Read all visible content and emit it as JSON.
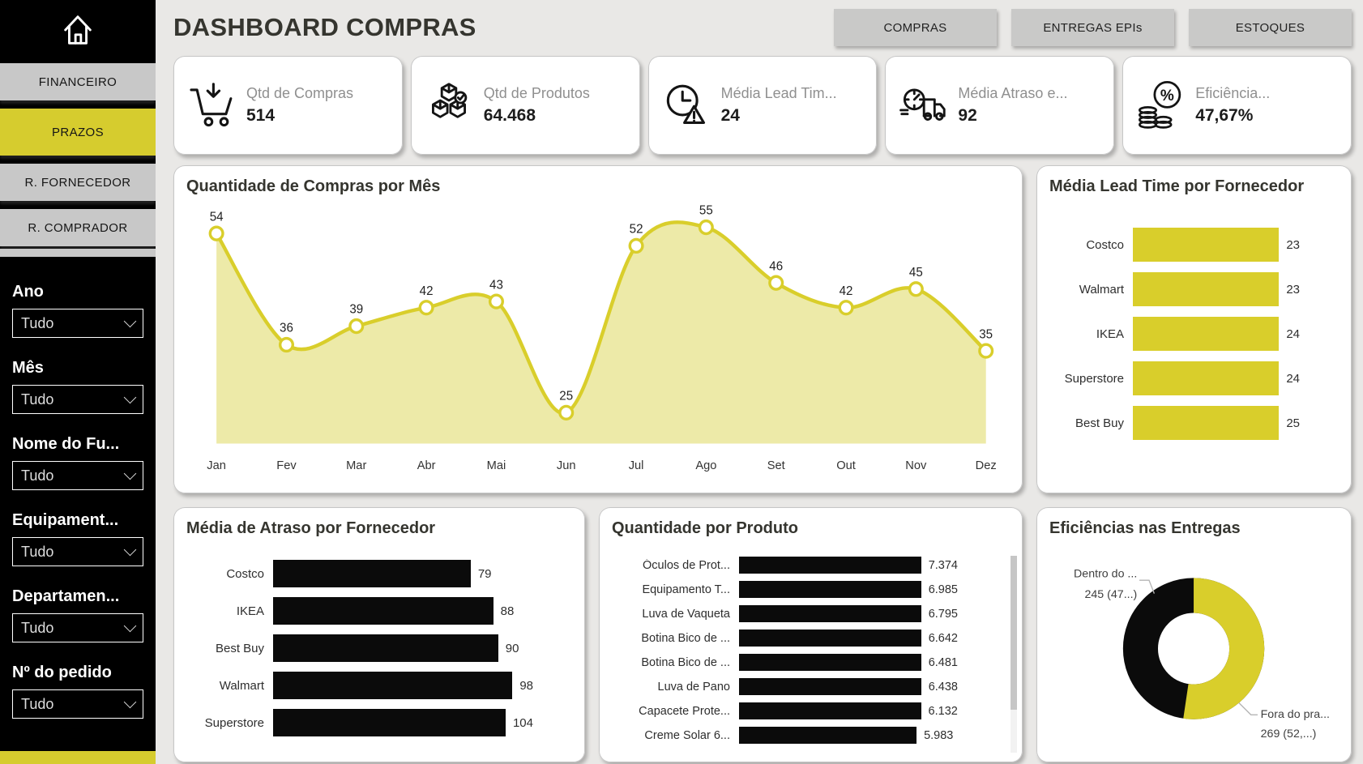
{
  "header": {
    "title": "DASHBOARD COMPRAS",
    "nav_buttons": [
      "COMPRAS",
      "ENTREGAS EPIs",
      "ESTOQUES"
    ]
  },
  "sidebar": {
    "home_icon": "home-icon",
    "nav": [
      {
        "label": "FINANCEIRO",
        "active": false
      },
      {
        "label": "PRAZOS",
        "active": true
      },
      {
        "label": "R. FORNECEDOR",
        "active": false
      },
      {
        "label": "R. COMPRADOR",
        "active": false
      }
    ],
    "filters": [
      {
        "label": "Ano",
        "value": "Tudo"
      },
      {
        "label": "Mês",
        "value": "Tudo"
      },
      {
        "label": "Nome do Fu...",
        "value": "Tudo"
      },
      {
        "label": "Equipament...",
        "value": "Tudo"
      },
      {
        "label": "Departamen...",
        "value": "Tudo"
      },
      {
        "label": "Nº do pedido",
        "value": "Tudo"
      }
    ]
  },
  "kpis": [
    {
      "icon": "cart-download-icon",
      "label": "Qtd de Compras",
      "value": "514"
    },
    {
      "icon": "cubes-check-icon",
      "label": "Qtd de Produtos",
      "value": "64.468"
    },
    {
      "icon": "clock-alert-icon",
      "label": "Média Lead Tim...",
      "value": "24"
    },
    {
      "icon": "truck-gauge-icon",
      "label": "Média Atraso e...",
      "value": "92"
    },
    {
      "icon": "coins-percent-icon",
      "label": "Eficiência...",
      "value": "47,67%"
    }
  ],
  "colors": {
    "accent_yellow": "#d9ce2b",
    "area_fill": "#edeaa8",
    "bar_black": "#0b0b0b",
    "sidebar_active": "#d6cc2e",
    "background": "#e9e8e6"
  },
  "chart_data": [
    {
      "id": "compras_mes",
      "type": "area",
      "title": "Quantidade de Compras por Mês",
      "categories": [
        "Jan",
        "Fev",
        "Mar",
        "Abr",
        "Mai",
        "Jun",
        "Jul",
        "Ago",
        "Set",
        "Out",
        "Nov",
        "Dez"
      ],
      "values": [
        54,
        36,
        39,
        42,
        43,
        25,
        52,
        55,
        46,
        42,
        45,
        35
      ],
      "ylim": [
        20,
        57
      ],
      "line_color": "#d9ce2b",
      "fill_color": "#edeaa8",
      "marker_fill": "#ffffff",
      "data_labels": true,
      "grid": false
    },
    {
      "id": "leadtime_fornecedor",
      "type": "bar",
      "title": "Média Lead Time por Fornecedor",
      "orientation": "horizontal",
      "categories": [
        "Costco",
        "Walmart",
        "IKEA",
        "Superstore",
        "Best Buy"
      ],
      "values": [
        23,
        23,
        24,
        24,
        25
      ],
      "value_labels": [
        "23",
        "23",
        "24",
        "24",
        "25"
      ],
      "bar_color": "#d9ce2b",
      "xlim": [
        0,
        25
      ]
    },
    {
      "id": "atraso_fornecedor",
      "type": "bar",
      "title": "Média de Atraso por Fornecedor",
      "orientation": "horizontal",
      "categories": [
        "Costco",
        "IKEA",
        "Best Buy",
        "Walmart",
        "Superstore"
      ],
      "values": [
        79,
        88,
        90,
        98,
        104
      ],
      "value_labels": [
        "79",
        "88",
        "90",
        "98",
        "104"
      ],
      "bar_color": "#0b0b0b",
      "xlim": [
        0,
        104
      ]
    },
    {
      "id": "qtd_produto",
      "type": "bar",
      "title": "Quantidade por Produto",
      "orientation": "horizontal",
      "categories": [
        "Óculos de Prot...",
        "Equipamento T...",
        "Luva de Vaqueta",
        "Botina Bico de ...",
        "Botina Bico de ...",
        "Luva de Pano",
        "Capacete Prote...",
        "Creme Solar 6..."
      ],
      "values": [
        7374,
        6985,
        6795,
        6642,
        6481,
        6438,
        6132,
        5983
      ],
      "value_labels": [
        "7.374",
        "6.985",
        "6.795",
        "6.642",
        "6.481",
        "6.438",
        "6.132",
        "5.983"
      ],
      "bar_color": "#0b0b0b",
      "xlim": [
        0,
        7374
      ],
      "has_scrollbar": true
    },
    {
      "id": "eficiencia_entregas",
      "type": "donut",
      "title": "Eficiências nas Entregas",
      "slices": [
        {
          "label": "Dentro do ...",
          "value": 245,
          "value_label": "245 (47...)",
          "color": "#0b0b0b"
        },
        {
          "label": "Fora do pra...",
          "value": 269,
          "value_label": "269 (52,...)",
          "color": "#d9ce2b"
        }
      ]
    }
  ]
}
